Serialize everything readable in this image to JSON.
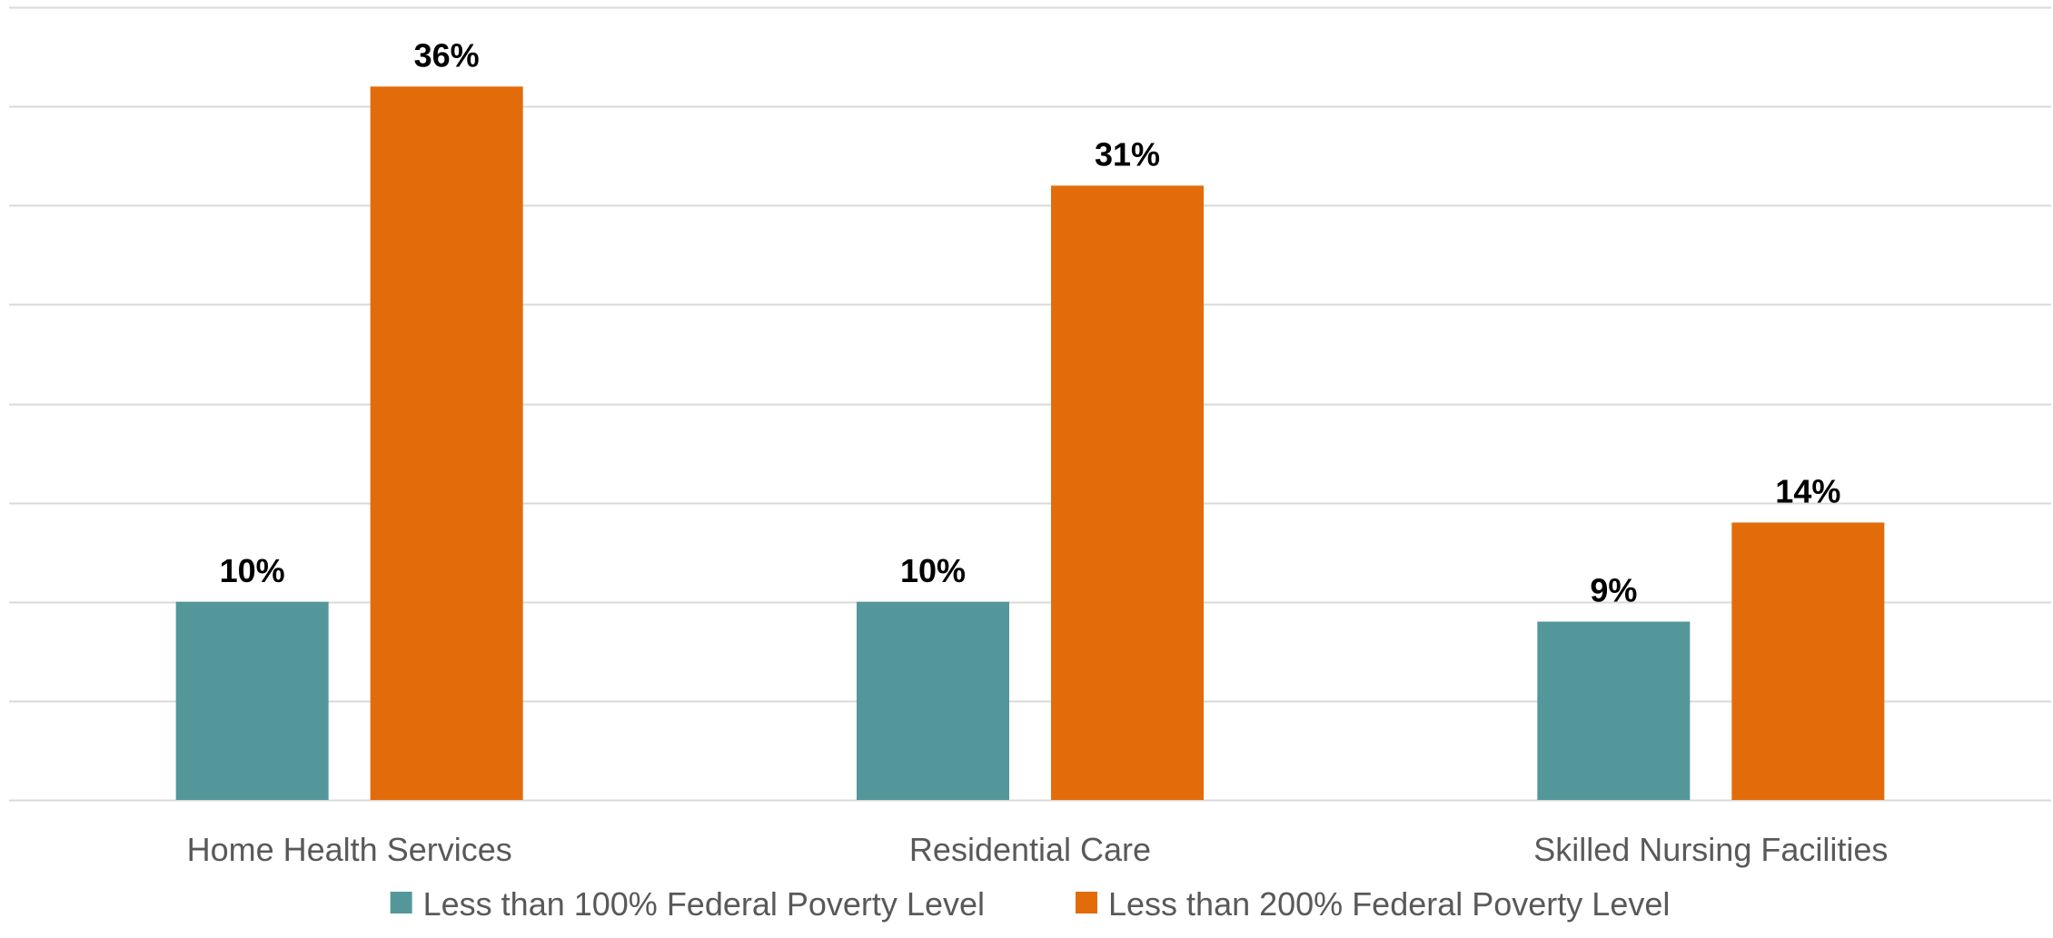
{
  "chart_data": {
    "type": "bar",
    "categories": [
      "Home Health Services",
      "Residential Care",
      "Skilled Nursing Facilities"
    ],
    "series": [
      {
        "name": "Less than 100% Federal Poverty Level",
        "values": [
          10,
          10,
          9
        ],
        "labels": [
          "10%",
          "10%",
          "9%"
        ],
        "color": "#54979b"
      },
      {
        "name": "Less than 200% Federal Poverty Level",
        "values": [
          36,
          31,
          14
        ],
        "labels": [
          "36%",
          "31%",
          "14%"
        ],
        "color": "#e36c0a"
      }
    ],
    "ylim": [
      0,
      40
    ],
    "ytick_step": 5,
    "ytick_labels_shown": false,
    "grid": true,
    "legend_position": "bottom"
  }
}
